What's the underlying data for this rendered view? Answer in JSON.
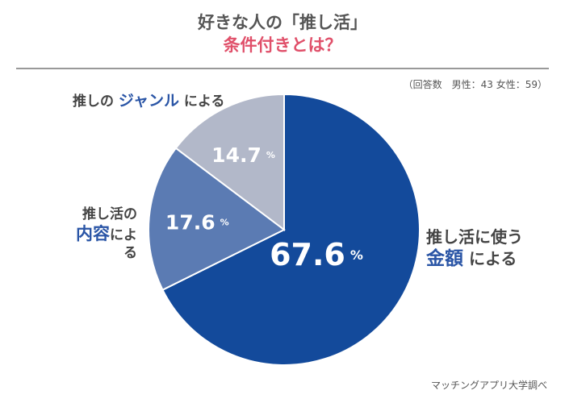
{
  "header": {
    "title_line1": "好きな人の「推し活」",
    "title_line2": "条件付きとは？"
  },
  "note": "（回答数　男性：43 女性：59）",
  "source": "マッチングアプリ大学調べ",
  "labels": {
    "a_line1": "推し活に使う",
    "a_hl": "金額",
    "a_tail": " による",
    "b_line1": "推し活の",
    "b_hl": "内容",
    "b_tail": "による",
    "c_pre": "推しの ",
    "c_hl": "ジャンル",
    "c_tail": " による"
  },
  "chart_data": {
    "type": "pie",
    "title": "好きな人の「推し活」条件付きとは？",
    "categories": [
      "推し活に使う金額による",
      "推し活の内容による",
      "推しのジャンルによる"
    ],
    "values": [
      67.6,
      17.6,
      14.7
    ],
    "value_suffix": "%",
    "value_texts": [
      "67.6",
      "17.6",
      "14.7"
    ],
    "colors": [
      "#134a9b",
      "#5b7bb3",
      "#b2b8c9"
    ],
    "start": "12 o'clock",
    "direction": "clockwise"
  }
}
